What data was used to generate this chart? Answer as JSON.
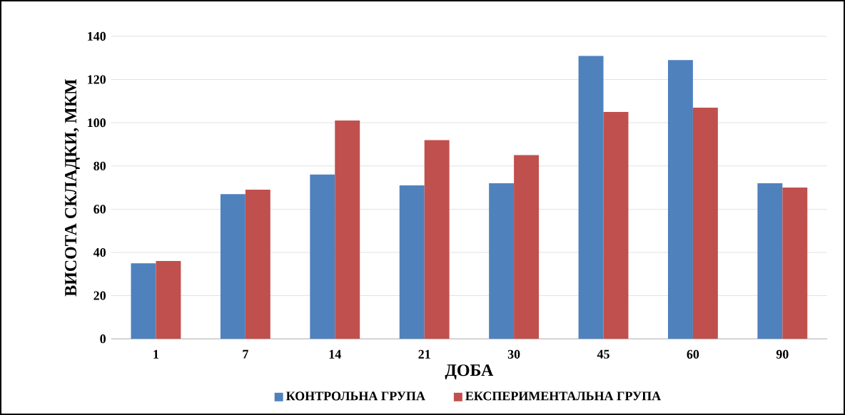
{
  "chart_data": {
    "type": "bar",
    "xlabel": "ДОБА",
    "ylabel": "ВИСОТА СКЛАДКИ, МКМ",
    "categories": [
      "1",
      "7",
      "14",
      "21",
      "30",
      "45",
      "60",
      "90"
    ],
    "series": [
      {
        "name": "КОНТРОЛЬНА ГРУПА",
        "color": "#4f81bd",
        "values": [
          35,
          67,
          76,
          71,
          72,
          131,
          129,
          72
        ]
      },
      {
        "name": "ЕКСПЕРИМЕНТАЛЬНА ГРУПА",
        "color": "#c0504d",
        "values": [
          36,
          69,
          101,
          92,
          85,
          105,
          107,
          70
        ]
      }
    ],
    "ylim": [
      0,
      140
    ],
    "yticks": [
      0,
      20,
      40,
      60,
      80,
      100,
      120,
      140
    ],
    "grid": "y",
    "legend": "bottom"
  }
}
